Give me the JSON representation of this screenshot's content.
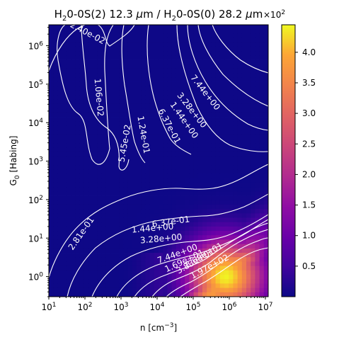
{
  "chart_data": {
    "type": "heatmap",
    "title_left": "H",
    "title_mid1": "0-0S(2) 12.3 ",
    "title_mu1": "μ",
    "title_m1": "m / H",
    "title_mid2": "0-0S(0) 28.2 ",
    "title_mu2": "μ",
    "title_m2": "m",
    "title_sub": "2",
    "xlabel_main": "n [cm",
    "xlabel_sup": "−3",
    "xlabel_end": "]",
    "ylabel_g": "G",
    "ylabel_sub": "0",
    "ylabel_rest": " [Habing]",
    "x_scale": "log",
    "y_scale": "log",
    "x_range": [
      10,
      12000000
    ],
    "y_range": [
      0.3,
      3500000
    ],
    "x_ticks": [
      {
        "base": "10",
        "exp": "1",
        "value": 10
      },
      {
        "base": "10",
        "exp": "2",
        "value": 100
      },
      {
        "base": "10",
        "exp": "3",
        "value": 1000
      },
      {
        "base": "10",
        "exp": "4",
        "value": 10000
      },
      {
        "base": "10",
        "exp": "5",
        "value": 100000
      },
      {
        "base": "10",
        "exp": "6",
        "value": 1000000
      },
      {
        "base": "10",
        "exp": "7",
        "value": 10000000
      }
    ],
    "y_ticks": [
      {
        "base": "10",
        "exp": "0",
        "value": 1
      },
      {
        "base": "10",
        "exp": "1",
        "value": 10
      },
      {
        "base": "10",
        "exp": "2",
        "value": 100
      },
      {
        "base": "10",
        "exp": "3",
        "value": 1000
      },
      {
        "base": "10",
        "exp": "4",
        "value": 10000
      },
      {
        "base": "10",
        "exp": "5",
        "value": 100000
      },
      {
        "base": "10",
        "exp": "6",
        "value": 1000000
      }
    ],
    "colorbar": {
      "colormap": "plasma",
      "min": 0,
      "max": 4.45,
      "multiplier_base": "×10",
      "multiplier_exp": "2",
      "ticks": [
        "0.5",
        "1.0",
        "1.5",
        "2.0",
        "2.5",
        "3.0",
        "3.5",
        "4.0"
      ],
      "tick_values": [
        0.5,
        1.0,
        1.5,
        2.0,
        2.5,
        3.0,
        3.5,
        4.0
      ]
    },
    "contour_labels": [
      "2.40e-02",
      "1.06e-02",
      "5.45e-02",
      "1.24e-01",
      "2.81e-01",
      "6.37e-01",
      "1.44e+00",
      "3.28e+00",
      "7.44e+00",
      "1.69e+01",
      "3.83e+01",
      "8.68e+01",
      "1.97e+02"
    ],
    "contour_color": "#ffffff"
  }
}
